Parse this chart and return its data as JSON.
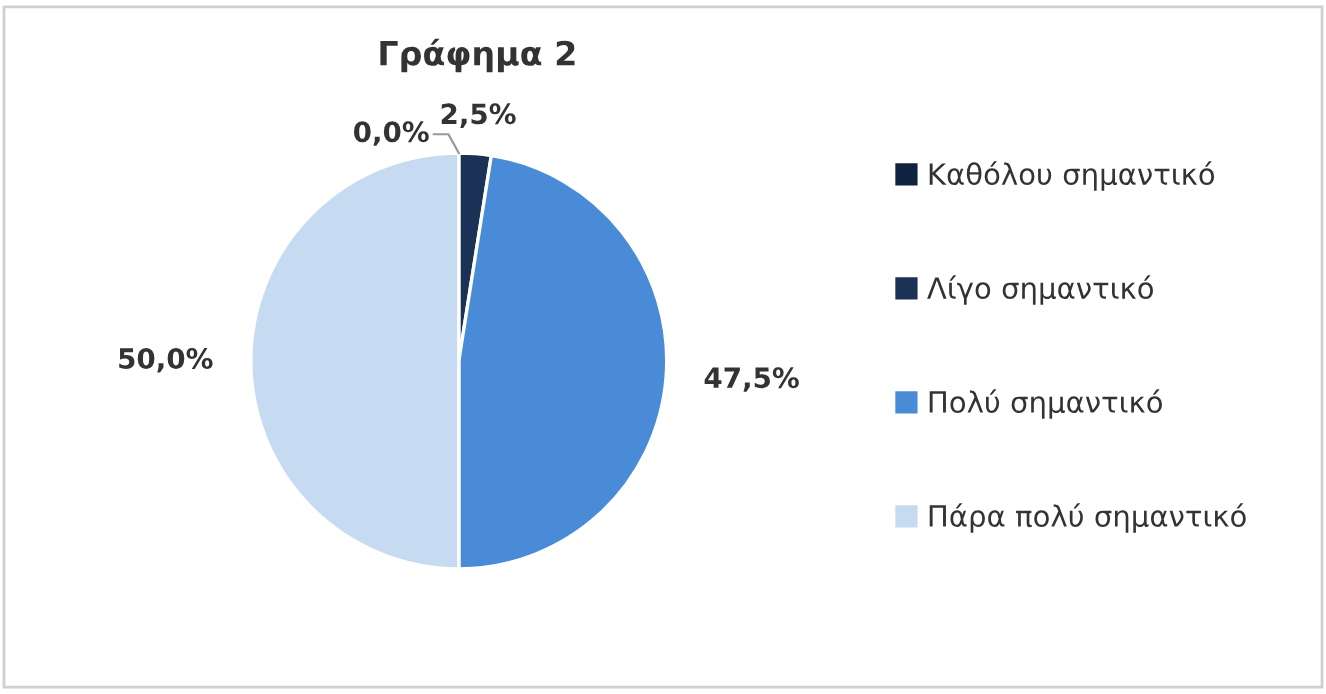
{
  "chart_data": {
    "type": "pie",
    "title": "Γράφημα 2",
    "categories": [
      "Καθόλου σημαντικό",
      "Λίγο σημαντικό",
      "Πολύ σημαντικό",
      "Πάρα πολύ σημαντικό"
    ],
    "values": [
      0,
      2.5,
      47.5,
      50
    ],
    "value_labels": [
      "0,0%",
      "2,5%",
      "47,5%",
      "50,0%"
    ],
    "colors": [
      "#0f2340",
      "#1b3156",
      "#4a8bd8",
      "#c6daf2"
    ],
    "legend": "right"
  }
}
